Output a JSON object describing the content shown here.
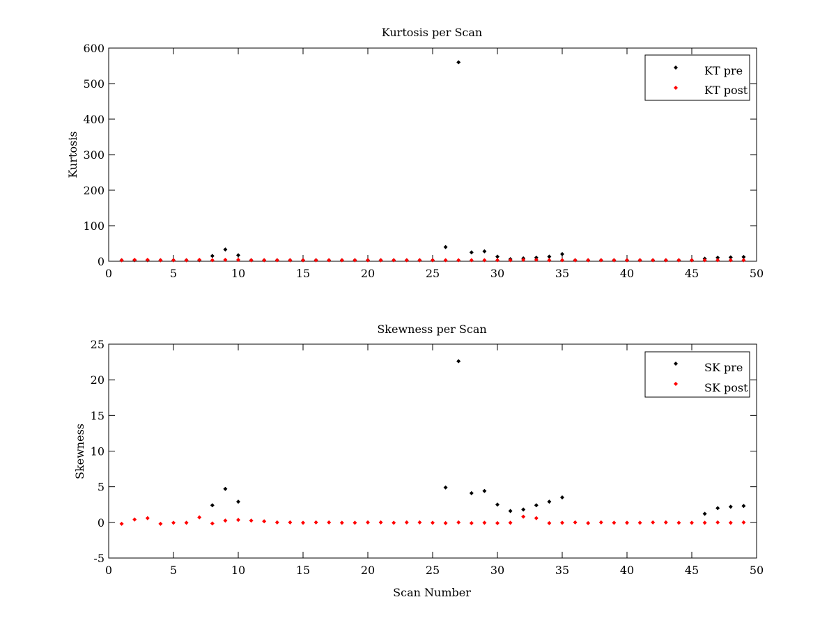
{
  "figure": {
    "background": "#ffffff"
  },
  "chart_data": [
    {
      "type": "scatter",
      "title": "Kurtosis per Scan",
      "xlabel": "",
      "ylabel": "Kurtosis",
      "xlim": [
        0,
        50
      ],
      "ylim": [
        0,
        600
      ],
      "xticks": [
        0,
        5,
        10,
        15,
        20,
        25,
        30,
        35,
        40,
        45,
        50
      ],
      "yticks": [
        0,
        100,
        200,
        300,
        400,
        500,
        600
      ],
      "grid": false,
      "legend_position": "top-right",
      "series": [
        {
          "name": "KT pre",
          "color": "#000000",
          "marker": "diamond",
          "x": [
            1,
            2,
            3,
            4,
            5,
            6,
            7,
            8,
            9,
            10,
            11,
            12,
            13,
            14,
            15,
            16,
            17,
            18,
            19,
            20,
            21,
            22,
            23,
            24,
            25,
            26,
            27,
            28,
            29,
            30,
            31,
            32,
            33,
            34,
            35,
            36,
            37,
            38,
            39,
            40,
            41,
            42,
            43,
            44,
            45,
            46,
            47,
            48,
            49
          ],
          "y": [
            3,
            3,
            3,
            3,
            3,
            3,
            3,
            15,
            33,
            17,
            3,
            3,
            3,
            3,
            3,
            3,
            3,
            3,
            3,
            3,
            3,
            3,
            3,
            3,
            3,
            40,
            560,
            25,
            28,
            13,
            6,
            8,
            10,
            13,
            20,
            3,
            3,
            3,
            3,
            3,
            3,
            3,
            3,
            3,
            3,
            7,
            10,
            11,
            12
          ]
        },
        {
          "name": "KT post",
          "color": "#ff0000",
          "marker": "diamond",
          "x": [
            1,
            2,
            3,
            4,
            5,
            6,
            7,
            8,
            9,
            10,
            11,
            12,
            13,
            14,
            15,
            16,
            17,
            18,
            19,
            20,
            21,
            22,
            23,
            24,
            25,
            26,
            27,
            28,
            29,
            30,
            31,
            32,
            33,
            34,
            35,
            36,
            37,
            38,
            39,
            40,
            41,
            42,
            43,
            44,
            45,
            46,
            47,
            48,
            49
          ],
          "y": [
            3,
            4,
            4,
            3,
            3,
            3,
            4,
            3,
            4,
            4,
            3,
            3,
            3,
            3,
            3,
            3,
            3,
            3,
            3,
            3,
            3,
            3,
            3,
            3,
            3,
            3,
            3,
            3,
            3,
            3,
            3,
            4,
            4,
            3,
            3,
            3,
            3,
            3,
            3,
            3,
            3,
            3,
            3,
            3,
            3,
            3,
            3,
            3,
            3
          ]
        }
      ]
    },
    {
      "type": "scatter",
      "title": "Skewness per Scan",
      "xlabel": "Scan Number",
      "ylabel": "Skewness",
      "xlim": [
        0,
        50
      ],
      "ylim": [
        -5,
        25
      ],
      "xticks": [
        0,
        5,
        10,
        15,
        20,
        25,
        30,
        35,
        40,
        45,
        50
      ],
      "yticks": [
        -5,
        0,
        5,
        10,
        15,
        20,
        25
      ],
      "grid": false,
      "legend_position": "top-right",
      "series": [
        {
          "name": "SK pre",
          "color": "#000000",
          "marker": "diamond",
          "x": [
            8,
            9,
            10,
            26,
            27,
            28,
            29,
            30,
            31,
            32,
            33,
            34,
            35,
            46,
            47,
            48,
            49
          ],
          "y": [
            2.4,
            4.7,
            2.9,
            4.9,
            22.6,
            4.1,
            4.4,
            2.5,
            1.6,
            1.8,
            2.4,
            2.9,
            3.5,
            1.2,
            2.0,
            2.2,
            2.3
          ]
        },
        {
          "name": "SK post",
          "color": "#ff0000",
          "marker": "diamond",
          "x": [
            1,
            2,
            3,
            4,
            5,
            6,
            7,
            8,
            9,
            10,
            11,
            12,
            13,
            14,
            15,
            16,
            17,
            18,
            19,
            20,
            21,
            22,
            23,
            24,
            25,
            26,
            27,
            28,
            29,
            30,
            31,
            32,
            33,
            34,
            35,
            36,
            37,
            38,
            39,
            40,
            41,
            42,
            43,
            44,
            45,
            46,
            47,
            48,
            49
          ],
          "y": [
            -0.2,
            0.4,
            0.6,
            -0.2,
            -0.05,
            -0.05,
            0.7,
            -0.15,
            0.25,
            0.35,
            0.25,
            0.15,
            0.0,
            0.0,
            -0.05,
            0.0,
            0.0,
            -0.05,
            -0.05,
            0.0,
            0.0,
            -0.05,
            0.0,
            0.0,
            -0.05,
            -0.1,
            0.0,
            -0.1,
            -0.05,
            -0.1,
            -0.05,
            0.8,
            0.6,
            -0.1,
            -0.05,
            0.0,
            -0.1,
            0.0,
            -0.05,
            -0.05,
            -0.05,
            0.0,
            0.0,
            -0.05,
            -0.05,
            -0.05,
            0.0,
            -0.05,
            0.0
          ]
        }
      ]
    }
  ]
}
